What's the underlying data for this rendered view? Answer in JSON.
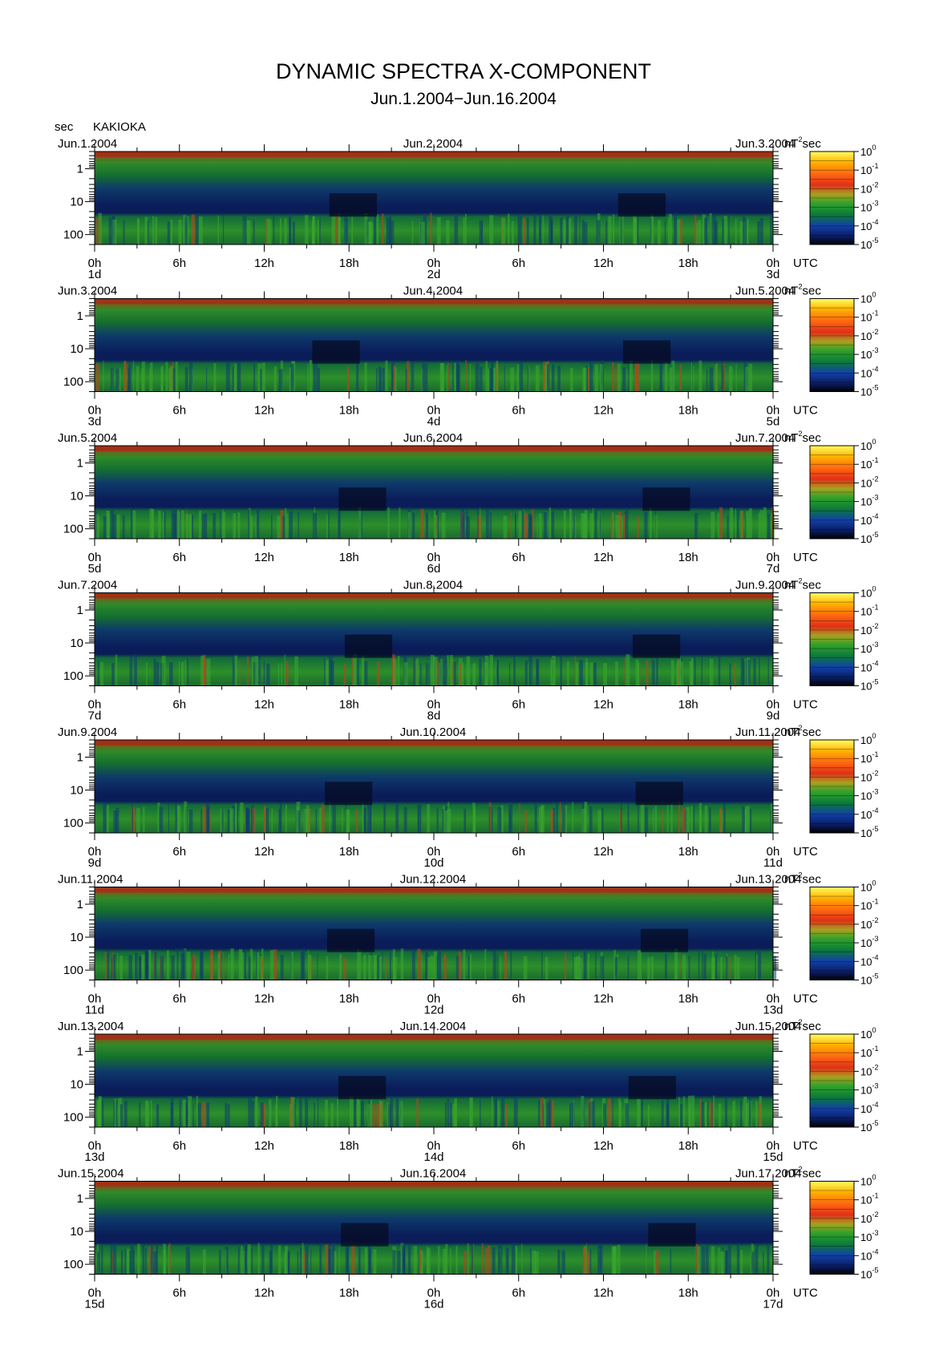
{
  "chart_data": {
    "type": "heatmap",
    "title": "DYNAMIC SPECTRA X-COMPONENT",
    "subtitle": "Jun.1.2004−Jun.16.2004",
    "station": "KAKIOKA",
    "yunit": "sec",
    "xunit": "UTC",
    "colorbar_unit": "nT",
    "colorbar_unit_sup": "2",
    "colorbar_unit_tail": "sec",
    "colorbar_base": "10",
    "colorbar_exponents": [
      "0",
      "-1",
      "-2",
      "-3",
      "-4",
      "-5"
    ],
    "colorbar_range_log10": [
      -5,
      0
    ],
    "colorbar_colors": [
      "#000000",
      "#0a1a5c",
      "#1240a8",
      "#0b7a3a",
      "#2fa12a",
      "#a8a020",
      "#e03018",
      "#ff6a10",
      "#ffb000",
      "#ffff60"
    ],
    "y_ticks": [
      "1",
      "10",
      "100"
    ],
    "y_tick_values": [
      1,
      10,
      100
    ],
    "y_range_sec": [
      0.3,
      200
    ],
    "x_ticks": [
      "0h",
      "6h",
      "12h",
      "18h",
      "0h",
      "6h",
      "12h",
      "18h",
      "0h"
    ],
    "x_tick_hours": [
      0,
      6,
      12,
      18,
      24,
      30,
      36,
      42,
      48
    ],
    "x_range_hours": [
      0,
      48
    ],
    "panels": [
      {
        "left_date": "Jun.1.2004",
        "mid_date": "Jun.2.2004",
        "right_date": "Jun.3.2004",
        "day_labels": [
          "1d",
          "2d",
          "3d"
        ]
      },
      {
        "left_date": "Jun.3.2004",
        "mid_date": "Jun.4.2004",
        "right_date": "Jun.5.2004",
        "day_labels": [
          "3d",
          "4d",
          "5d"
        ]
      },
      {
        "left_date": "Jun.5.2004",
        "mid_date": "Jun.6.2004",
        "right_date": "Jun.7.2004",
        "day_labels": [
          "5d",
          "6d",
          "7d"
        ]
      },
      {
        "left_date": "Jun.7.2004",
        "mid_date": "Jun.8.2004",
        "right_date": "Jun.9.2004",
        "day_labels": [
          "7d",
          "8d",
          "9d"
        ]
      },
      {
        "left_date": "Jun.9.2004",
        "mid_date": "Jun.10.2004",
        "right_date": "Jun.11.2004",
        "day_labels": [
          "9d",
          "10d",
          "11d"
        ]
      },
      {
        "left_date": "Jun.11.2004",
        "mid_date": "Jun.12.2004",
        "right_date": "Jun.13.2004",
        "day_labels": [
          "11d",
          "12d",
          "13d"
        ]
      },
      {
        "left_date": "Jun.13.2004",
        "mid_date": "Jun.14.2004",
        "right_date": "Jun.15.2004",
        "day_labels": [
          "13d",
          "14d",
          "15d"
        ]
      },
      {
        "left_date": "Jun.15.2004",
        "mid_date": "Jun.16.2004",
        "right_date": "Jun.17.2004",
        "day_labels": [
          "15d",
          "16d",
          "17d"
        ]
      }
    ]
  }
}
